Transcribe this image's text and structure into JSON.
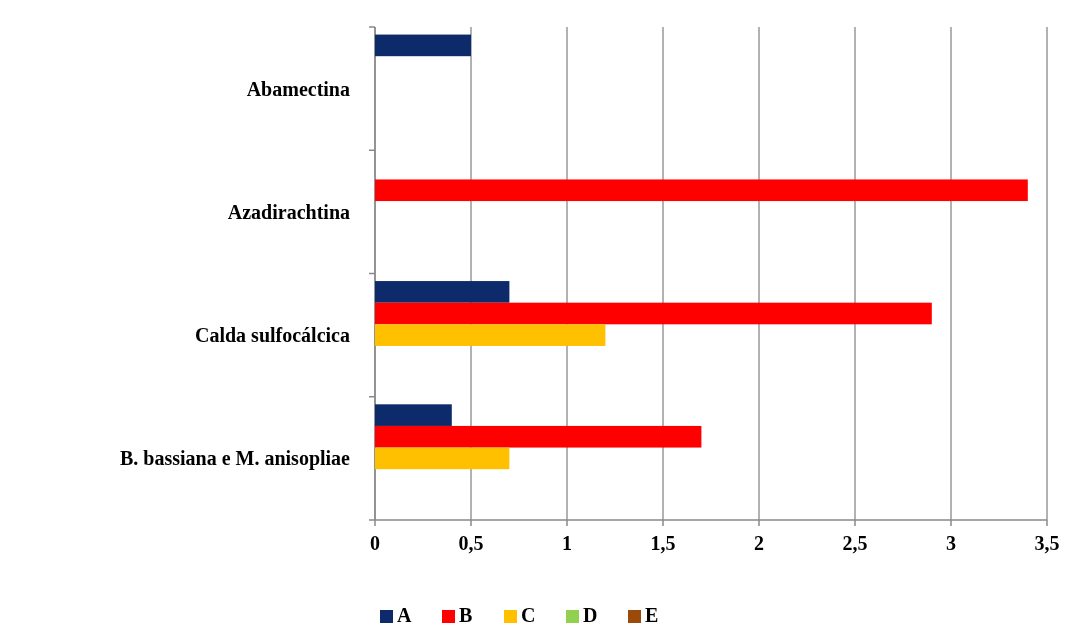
{
  "chart_data": {
    "type": "bar",
    "orientation": "horizontal",
    "categories": [
      "Abamectina",
      "Azadirachtina",
      "Calda sulfocálcica",
      "B. bassiana e M. anisopliae"
    ],
    "series": [
      {
        "name": "A",
        "color": "#0d2a6b",
        "values": [
          0.5,
          null,
          0.7,
          0.4
        ]
      },
      {
        "name": "B",
        "color": "#ff0000",
        "values": [
          null,
          3.4,
          2.9,
          1.7
        ]
      },
      {
        "name": "C",
        "color": "#ffc000",
        "values": [
          null,
          null,
          1.2,
          0.7
        ]
      },
      {
        "name": "D",
        "color": "#92d050",
        "values": [
          null,
          null,
          null,
          null
        ]
      },
      {
        "name": "E",
        "color": "#9c4a0a",
        "values": [
          null,
          null,
          null,
          null
        ]
      }
    ],
    "xlim": [
      0,
      3.5
    ],
    "xticks": [
      0,
      {
        "value": 0.5,
        "label": "0,5"
      },
      1,
      {
        "value": 1.5,
        "label": "1,5"
      },
      2,
      {
        "value": 2.5,
        "label": "2,5"
      },
      3,
      {
        "value": 3.5,
        "label": "3,5"
      }
    ],
    "grid": "x",
    "legend": "bottom"
  }
}
